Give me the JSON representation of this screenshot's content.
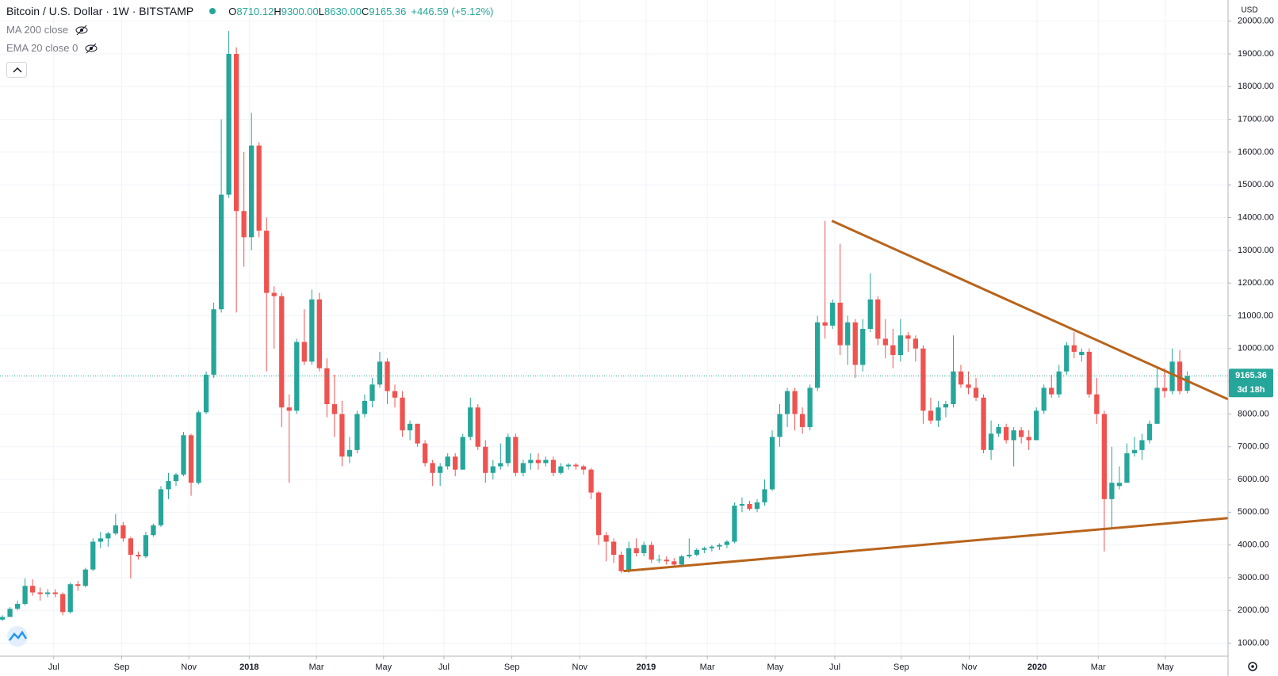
{
  "chart_data": {
    "type": "candlestick",
    "title": "Bitcoin / U.S. Dollar · 1W · BITSTAMP",
    "ohlc_header": [
      {
        "label": "O",
        "value": "8710.12"
      },
      {
        "label": "H",
        "value": "9300.00"
      },
      {
        "label": "L",
        "value": "8630.00"
      },
      {
        "label": "C",
        "value": "9165.36"
      }
    ],
    "change": "+446.59 (+5.12%)",
    "indicators": [
      "MA 200 close",
      "EMA 20 close 0"
    ],
    "axis_unit": "USD",
    "up_color": "#26a69a",
    "down_color": "#ef5350",
    "last_price": 9165.36,
    "countdown": "3d 18h",
    "candles": [
      [
        1720,
        1850,
        1680,
        1800
      ],
      [
        1800,
        2100,
        1800,
        2050
      ],
      [
        2050,
        2300,
        2000,
        2200
      ],
      [
        2200,
        2980,
        2150,
        2750
      ],
      [
        2750,
        2950,
        2450,
        2550
      ],
      [
        2550,
        2700,
        2300,
        2500
      ],
      [
        2500,
        2650,
        2400,
        2550
      ],
      [
        2550,
        2650,
        2400,
        2500
      ],
      [
        2500,
        2550,
        1850,
        1950
      ],
      [
        1950,
        2850,
        1900,
        2800
      ],
      [
        2800,
        2900,
        2600,
        2750
      ],
      [
        2750,
        3300,
        2700,
        3250
      ],
      [
        3250,
        4200,
        3200,
        4100
      ],
      [
        4100,
        4400,
        3900,
        4200
      ],
      [
        4200,
        4400,
        3950,
        4350
      ],
      [
        4350,
        4950,
        4300,
        4600
      ],
      [
        4600,
        4700,
        4100,
        4200
      ],
      [
        4200,
        4250,
        2980,
        3700
      ],
      [
        3700,
        3800,
        3550,
        3650
      ],
      [
        3650,
        4400,
        3600,
        4300
      ],
      [
        4300,
        4650,
        4250,
        4600
      ],
      [
        4600,
        5800,
        4550,
        5700
      ],
      [
        5700,
        6200,
        5400,
        5950
      ],
      [
        5950,
        6200,
        5800,
        6150
      ],
      [
        6150,
        7450,
        6100,
        7350
      ],
      [
        7350,
        7400,
        5500,
        5900
      ],
      [
        5900,
        8100,
        5850,
        8050
      ],
      [
        8050,
        9300,
        8000,
        9200
      ],
      [
        9200,
        11400,
        9100,
        11200
      ],
      [
        11200,
        17000,
        11100,
        14700
      ],
      [
        14700,
        19700,
        14600,
        19000
      ],
      [
        19000,
        19200,
        11100,
        14200
      ],
      [
        14200,
        16000,
        12500,
        13400
      ],
      [
        13400,
        17200,
        13000,
        16200
      ],
      [
        16200,
        16300,
        13400,
        13600
      ],
      [
        13600,
        14000,
        9300,
        11700
      ],
      [
        11700,
        11900,
        10000,
        11600
      ],
      [
        11600,
        11700,
        7600,
        8200
      ],
      [
        8200,
        8600,
        5900,
        8100
      ],
      [
        8100,
        10300,
        8000,
        10200
      ],
      [
        10200,
        11200,
        9500,
        9600
      ],
      [
        9600,
        11800,
        9500,
        11500
      ],
      [
        11500,
        11700,
        9300,
        9400
      ],
      [
        9400,
        9700,
        7900,
        8300
      ],
      [
        8300,
        9200,
        7300,
        8000
      ],
      [
        8000,
        8400,
        6400,
        6700
      ],
      [
        6700,
        7300,
        6500,
        6900
      ],
      [
        6900,
        8100,
        6800,
        8000
      ],
      [
        8000,
        8600,
        7900,
        8400
      ],
      [
        8400,
        9100,
        8200,
        8900
      ],
      [
        8900,
        9900,
        8800,
        9600
      ],
      [
        9600,
        9700,
        8300,
        8700
      ],
      [
        8700,
        8900,
        8200,
        8500
      ],
      [
        8500,
        8700,
        7300,
        7500
      ],
      [
        7500,
        7800,
        7200,
        7700
      ],
      [
        7700,
        7700,
        7000,
        7100
      ],
      [
        7100,
        7200,
        6400,
        6500
      ],
      [
        6500,
        6600,
        5800,
        6200
      ],
      [
        6200,
        6500,
        5800,
        6400
      ],
      [
        6400,
        6800,
        6300,
        6700
      ],
      [
        6700,
        6800,
        6100,
        6300
      ],
      [
        6300,
        7400,
        6300,
        7300
      ],
      [
        7300,
        8500,
        7200,
        8200
      ],
      [
        8200,
        8300,
        6900,
        7000
      ],
      [
        7000,
        7200,
        5900,
        6200
      ],
      [
        6200,
        6600,
        6000,
        6400
      ],
      [
        6400,
        7100,
        6300,
        6500
      ],
      [
        6500,
        7400,
        6400,
        7300
      ],
      [
        7300,
        7400,
        6100,
        6200
      ],
      [
        6200,
        6600,
        6100,
        6500
      ],
      [
        6500,
        6800,
        6300,
        6600
      ],
      [
        6600,
        6800,
        6300,
        6500
      ],
      [
        6500,
        6700,
        6400,
        6600
      ],
      [
        6600,
        6700,
        6100,
        6200
      ],
      [
        6200,
        6500,
        6150,
        6400
      ],
      [
        6400,
        6500,
        6300,
        6450
      ],
      [
        6450,
        6500,
        6300,
        6400
      ],
      [
        6400,
        6450,
        6150,
        6300
      ],
      [
        6300,
        6350,
        5400,
        5600
      ],
      [
        5600,
        5650,
        4000,
        4300
      ],
      [
        4300,
        4400,
        3500,
        4100
      ],
      [
        4100,
        4200,
        3450,
        3700
      ],
      [
        3700,
        3800,
        3150,
        3200
      ],
      [
        3200,
        4100,
        3150,
        3900
      ],
      [
        3900,
        4200,
        3650,
        3750
      ],
      [
        3750,
        4100,
        3650,
        4000
      ],
      [
        4000,
        4100,
        3450,
        3550
      ],
      [
        3550,
        3700,
        3450,
        3550
      ],
      [
        3550,
        3650,
        3400,
        3500
      ],
      [
        3500,
        3600,
        3350,
        3400
      ],
      [
        3400,
        3700,
        3350,
        3650
      ],
      [
        3650,
        4200,
        3600,
        3700
      ],
      [
        3700,
        3900,
        3650,
        3850
      ],
      [
        3850,
        3950,
        3750,
        3900
      ],
      [
        3900,
        4000,
        3800,
        3950
      ],
      [
        3950,
        4050,
        3850,
        4000
      ],
      [
        4000,
        4150,
        3900,
        4100
      ],
      [
        4100,
        5300,
        4050,
        5200
      ],
      [
        5200,
        5450,
        5000,
        5250
      ],
      [
        5250,
        5350,
        5050,
        5100
      ],
      [
        5100,
        5400,
        5000,
        5300
      ],
      [
        5300,
        6000,
        5200,
        5700
      ],
      [
        5700,
        7500,
        5650,
        7300
      ],
      [
        7300,
        8300,
        7000,
        8000
      ],
      [
        8000,
        8800,
        7600,
        8700
      ],
      [
        8700,
        8800,
        7500,
        8000
      ],
      [
        8000,
        8200,
        7400,
        7600
      ],
      [
        7600,
        8900,
        7500,
        8800
      ],
      [
        8800,
        11000,
        8700,
        10800
      ],
      [
        10800,
        13900,
        10300,
        10700
      ],
      [
        10700,
        11500,
        10600,
        11400
      ],
      [
        11400,
        13200,
        9800,
        10100
      ],
      [
        10100,
        11000,
        9500,
        10800
      ],
      [
        10800,
        10900,
        9100,
        9500
      ],
      [
        9500,
        10900,
        9300,
        10600
      ],
      [
        10600,
        12300,
        10500,
        11500
      ],
      [
        11500,
        11600,
        10100,
        10300
      ],
      [
        10300,
        10900,
        9700,
        10100
      ],
      [
        10100,
        10600,
        9400,
        9800
      ],
      [
        9800,
        10900,
        9600,
        10400
      ],
      [
        10400,
        10500,
        9900,
        10300
      ],
      [
        10300,
        10400,
        9600,
        10000
      ],
      [
        10000,
        10100,
        7700,
        8100
      ],
      [
        8100,
        8500,
        7700,
        7800
      ],
      [
        7800,
        8400,
        7600,
        8200
      ],
      [
        8200,
        8400,
        7900,
        8300
      ],
      [
        8300,
        10400,
        8200,
        9300
      ],
      [
        9300,
        9500,
        8800,
        8900
      ],
      [
        8900,
        9300,
        8600,
        8800
      ],
      [
        8800,
        9100,
        8400,
        8500
      ],
      [
        8500,
        8600,
        6800,
        6900
      ],
      [
        6900,
        7800,
        6600,
        7400
      ],
      [
        7400,
        7700,
        7300,
        7600
      ],
      [
        7600,
        7700,
        7100,
        7200
      ],
      [
        7200,
        7600,
        6400,
        7500
      ],
      [
        7500,
        7600,
        7100,
        7300
      ],
      [
        7300,
        7500,
        6900,
        7200
      ],
      [
        7200,
        8200,
        7200,
        8100
      ],
      [
        8100,
        8900,
        8000,
        8800
      ],
      [
        8800,
        9200,
        8500,
        8600
      ],
      [
        8600,
        9500,
        8500,
        9300
      ],
      [
        9300,
        10200,
        9200,
        10100
      ],
      [
        10100,
        10500,
        9700,
        9900
      ],
      [
        9800,
        10000,
        9600,
        9900
      ],
      [
        9900,
        10000,
        8500,
        8600
      ],
      [
        8600,
        9100,
        7700,
        8000
      ],
      [
        8000,
        8100,
        3800,
        5400
      ],
      [
        5400,
        7000,
        4500,
        5900
      ],
      [
        5800,
        6400,
        5700,
        5900
      ],
      [
        5900,
        7100,
        5900,
        6800
      ],
      [
        6800,
        7300,
        6700,
        6900
      ],
      [
        6900,
        7400,
        6600,
        7200
      ],
      [
        7200,
        7800,
        7100,
        7700
      ],
      [
        7700,
        9400,
        7700,
        8800
      ],
      [
        8800,
        9400,
        8500,
        8700
      ],
      [
        8700,
        10000,
        8600,
        9600
      ],
      [
        9600,
        9950,
        8600,
        8700
      ],
      [
        8710,
        9300,
        8630,
        9165.36
      ]
    ],
    "xlim": [
      -0.32,
      162.4
    ],
    "xticks": [
      {
        "value": 6.8,
        "label": "Jul"
      },
      {
        "value": 15.8,
        "label": "Sep"
      },
      {
        "value": 24.7,
        "label": "Nov"
      },
      {
        "value": 32.7,
        "label": "2018"
      },
      {
        "value": 41.6,
        "label": "Mar"
      },
      {
        "value": 50.5,
        "label": "May"
      },
      {
        "value": 58.5,
        "label": "Jul"
      },
      {
        "value": 67.5,
        "label": "Sep"
      },
      {
        "value": 76.5,
        "label": "Nov"
      },
      {
        "value": 85.3,
        "label": "2019"
      },
      {
        "value": 93.4,
        "label": "Mar"
      },
      {
        "value": 102.4,
        "label": "May"
      },
      {
        "value": 110.3,
        "label": "Jul"
      },
      {
        "value": 119.1,
        "label": "Sep"
      },
      {
        "value": 128.1,
        "label": "Nov"
      },
      {
        "value": 137.1,
        "label": "2020"
      },
      {
        "value": 145.2,
        "label": "Mar"
      },
      {
        "value": 154.1,
        "label": "May"
      }
    ],
    "ylim": [
      602,
      20646
    ],
    "yticks": [
      {
        "value": 1000,
        "label": "1000.00"
      },
      {
        "value": 2000,
        "label": "2000.00"
      },
      {
        "value": 3000,
        "label": "3000.00"
      },
      {
        "value": 4000,
        "label": "4000.00"
      },
      {
        "value": 5000,
        "label": "5000.00"
      },
      {
        "value": 6000,
        "label": "6000.00"
      },
      {
        "value": 7000,
        "label": "7000.00"
      },
      {
        "value": 8000,
        "label": "8000.00"
      },
      {
        "value": 9000,
        "label": "9000.00"
      },
      {
        "value": 10000,
        "label": "10000.00"
      },
      {
        "value": 11000,
        "label": "11000.00"
      },
      {
        "value": 12000,
        "label": "12000.00"
      },
      {
        "value": 13000,
        "label": "13000.00"
      },
      {
        "value": 14000,
        "label": "14000.00"
      },
      {
        "value": 15000,
        "label": "15000.00"
      },
      {
        "value": 16000,
        "label": "16000.00"
      },
      {
        "value": 17000,
        "label": "17000.00"
      },
      {
        "value": 18000,
        "label": "18000.00"
      },
      {
        "value": 19000,
        "label": "19000.00"
      },
      {
        "value": 20000,
        "label": "20000.00"
      }
    ],
    "grid": true,
    "trendline_color": "#b8641c",
    "trendlines": [
      {
        "points": [
          [
            109.9,
            13900
          ],
          [
            162.4,
            8450
          ]
        ]
      },
      {
        "points": [
          [
            82.3,
            3200
          ],
          [
            162.4,
            4820
          ]
        ]
      }
    ]
  }
}
